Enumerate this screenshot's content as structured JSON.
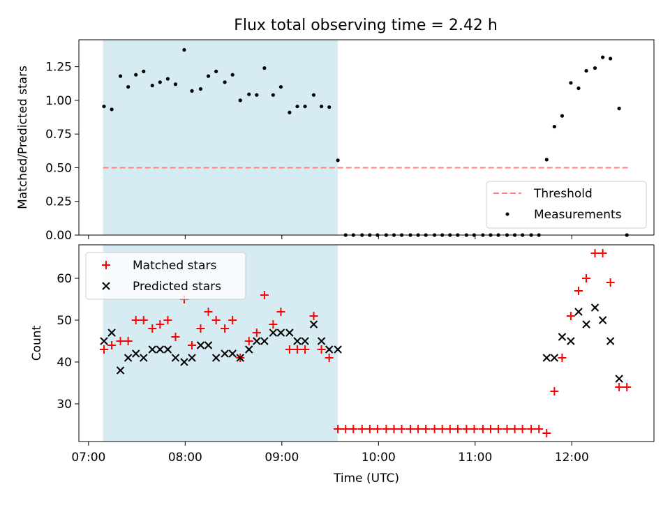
{
  "title": "Flux total observing time = 2.42 h",
  "colors": {
    "shade": "#add8e6",
    "threshold": "#ff7f7f",
    "matched": "#ff0000",
    "predicted": "#000000",
    "measurement": "#000000"
  },
  "chart_data": [
    {
      "type": "scatter",
      "ylabel": "Matched/Predicted stars",
      "xlim": [
        6.9,
        12.85
      ],
      "ylim": [
        0,
        1.45
      ],
      "yticks": [
        "0.00",
        "0.25",
        "0.50",
        "0.75",
        "1.00",
        "1.25"
      ],
      "ytick_values": [
        0,
        0.25,
        0.5,
        0.75,
        1.0,
        1.25
      ],
      "shaded_x_range": [
        7.15,
        9.58
      ],
      "threshold": {
        "name": "Threshold",
        "value": 0.5,
        "x_range": [
          7.15,
          12.58
        ]
      },
      "legend": {
        "location": "lower-right",
        "entries": [
          "Threshold",
          "Measurements"
        ]
      },
      "series": [
        {
          "name": "Measurements",
          "x": [
            7.16,
            7.24,
            7.33,
            7.41,
            7.49,
            7.57,
            7.66,
            7.74,
            7.82,
            7.9,
            7.99,
            8.07,
            8.16,
            8.24,
            8.32,
            8.41,
            8.49,
            8.57,
            8.66,
            8.74,
            8.82,
            8.91,
            8.99,
            9.08,
            9.16,
            9.24,
            9.33,
            9.41,
            9.49,
            9.58,
            9.66,
            9.74,
            9.83,
            9.91,
            9.99,
            10.08,
            10.16,
            10.24,
            10.33,
            10.41,
            10.49,
            10.58,
            10.66,
            10.74,
            10.82,
            10.91,
            10.99,
            11.08,
            11.16,
            11.24,
            11.33,
            11.41,
            11.49,
            11.58,
            11.66,
            11.74,
            11.82,
            11.9,
            11.99,
            12.07,
            12.15,
            12.24,
            12.32,
            12.4,
            12.49,
            12.57
          ],
          "y": [
            0.955,
            0.933,
            1.18,
            1.1,
            1.19,
            1.215,
            1.11,
            1.135,
            1.16,
            1.12,
            1.375,
            1.07,
            1.085,
            1.18,
            1.215,
            1.135,
            1.19,
            1.0,
            1.045,
            1.04,
            1.24,
            1.04,
            1.1,
            0.91,
            0.955,
            0.955,
            1.04,
            0.955,
            0.95,
            0.555,
            0,
            0,
            0,
            0,
            0,
            0,
            0,
            0,
            0,
            0,
            0,
            0,
            0,
            0,
            0,
            0,
            0,
            0,
            0,
            0,
            0,
            0,
            0,
            0,
            0,
            0.56,
            0.805,
            0.885,
            1.13,
            1.09,
            1.22,
            1.24,
            1.32,
            1.31,
            0.94,
            0
          ]
        }
      ]
    },
    {
      "type": "scatter",
      "xlabel": "Time (UTC)",
      "ylabel": "Count",
      "xlim": [
        6.9,
        12.85
      ],
      "ylim": [
        21,
        68
      ],
      "xticks": [
        "07:00",
        "08:00",
        "09:00",
        "10:00",
        "11:00",
        "12:00"
      ],
      "xtick_values": [
        7,
        8,
        9,
        10,
        11,
        12
      ],
      "yticks": [
        "30",
        "40",
        "50",
        "60"
      ],
      "ytick_values": [
        30,
        40,
        50,
        60
      ],
      "shaded_x_range": [
        7.15,
        9.58
      ],
      "legend": {
        "location": "upper-left",
        "entries": [
          "Matched stars",
          "Predicted stars"
        ]
      },
      "series": [
        {
          "name": "Matched stars",
          "x": [
            7.16,
            7.24,
            7.33,
            7.41,
            7.49,
            7.57,
            7.66,
            7.74,
            7.82,
            7.9,
            7.99,
            8.07,
            8.16,
            8.24,
            8.32,
            8.41,
            8.49,
            8.57,
            8.66,
            8.74,
            8.82,
            8.91,
            8.99,
            9.08,
            9.16,
            9.24,
            9.33,
            9.41,
            9.49,
            9.58,
            9.66,
            9.74,
            9.83,
            9.91,
            9.99,
            10.08,
            10.16,
            10.24,
            10.33,
            10.41,
            10.49,
            10.58,
            10.66,
            10.74,
            10.82,
            10.91,
            10.99,
            11.08,
            11.16,
            11.24,
            11.33,
            11.41,
            11.49,
            11.58,
            11.66,
            11.74,
            11.82,
            11.9,
            11.99,
            12.07,
            12.15,
            12.24,
            12.32,
            12.4,
            12.49,
            12.57
          ],
          "y": [
            43,
            44,
            45,
            45,
            50,
            50,
            48,
            49,
            50,
            46,
            55,
            44,
            48,
            52,
            50,
            48,
            50,
            41,
            45,
            47,
            56,
            49,
            52,
            43,
            43,
            43,
            51,
            43,
            41,
            24,
            24,
            24,
            24,
            24,
            24,
            24,
            24,
            24,
            24,
            24,
            24,
            24,
            24,
            24,
            24,
            24,
            24,
            24,
            24,
            24,
            24,
            24,
            24,
            24,
            24,
            23,
            33,
            41,
            51,
            57,
            60,
            66,
            66,
            59,
            34,
            34
          ]
        },
        {
          "name": "Predicted stars",
          "x": [
            7.16,
            7.24,
            7.33,
            7.41,
            7.49,
            7.57,
            7.66,
            7.74,
            7.82,
            7.9,
            7.99,
            8.07,
            8.16,
            8.24,
            8.32,
            8.41,
            8.49,
            8.57,
            8.66,
            8.74,
            8.82,
            8.91,
            8.99,
            9.08,
            9.16,
            9.24,
            9.33,
            9.41,
            9.49,
            9.58,
            11.74,
            11.82,
            11.9,
            11.99,
            12.07,
            12.15,
            12.24,
            12.32,
            12.4,
            12.49
          ],
          "y": [
            45,
            47,
            38,
            41,
            42,
            41,
            43,
            43,
            43,
            41,
            40,
            41,
            44,
            44,
            41,
            42,
            42,
            41,
            43,
            45,
            45,
            47,
            47,
            47,
            45,
            45,
            49,
            45,
            43,
            43,
            41,
            41,
            46,
            45,
            52,
            49,
            53,
            50,
            45,
            36
          ]
        }
      ]
    }
  ]
}
